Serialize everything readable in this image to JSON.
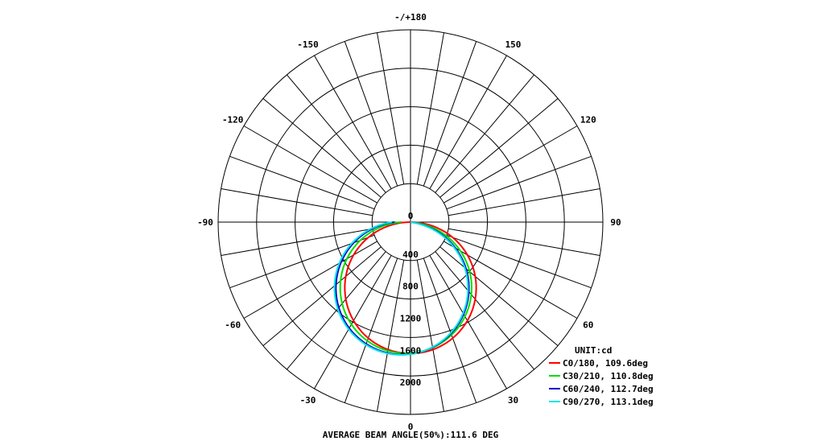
{
  "chart_data": {
    "type": "polar",
    "unit_label": "UNIT:cd",
    "footer": "AVERAGE BEAM ANGLE(50%):111.6 DEG",
    "radial_ticks": [
      "0",
      "400",
      "800",
      "1200",
      "1600",
      "2000"
    ],
    "radial_max": 2400,
    "zero_label_bottom": "0",
    "angle_labels": [
      {
        "text": "-/+180",
        "deg": 180
      },
      {
        "text": "150",
        "deg": 150
      },
      {
        "text": "120",
        "deg": 120
      },
      {
        "text": "90",
        "deg": 90
      },
      {
        "text": "60",
        "deg": 60
      },
      {
        "text": "30",
        "deg": 30
      },
      {
        "text": "-30",
        "deg": -30
      },
      {
        "text": "-60",
        "deg": -60
      },
      {
        "text": "-90",
        "deg": -90
      },
      {
        "text": "-120",
        "deg": -120
      },
      {
        "text": "-150",
        "deg": -150
      }
    ],
    "series": [
      {
        "name": "C0/180, 109.6deg",
        "color": "#ff0000",
        "peak": 1640,
        "shift": 0
      },
      {
        "name": "C30/210, 110.8deg",
        "color": "#00dd00",
        "peak": 1640,
        "shift": -4
      },
      {
        "name": "C60/240, 112.7deg",
        "color": "#0000cc",
        "peak": 1660,
        "shift": -7
      },
      {
        "name": "C90/270, 113.1deg",
        "color": "#00e5e5",
        "peak": 1665,
        "shift": -8
      }
    ]
  }
}
